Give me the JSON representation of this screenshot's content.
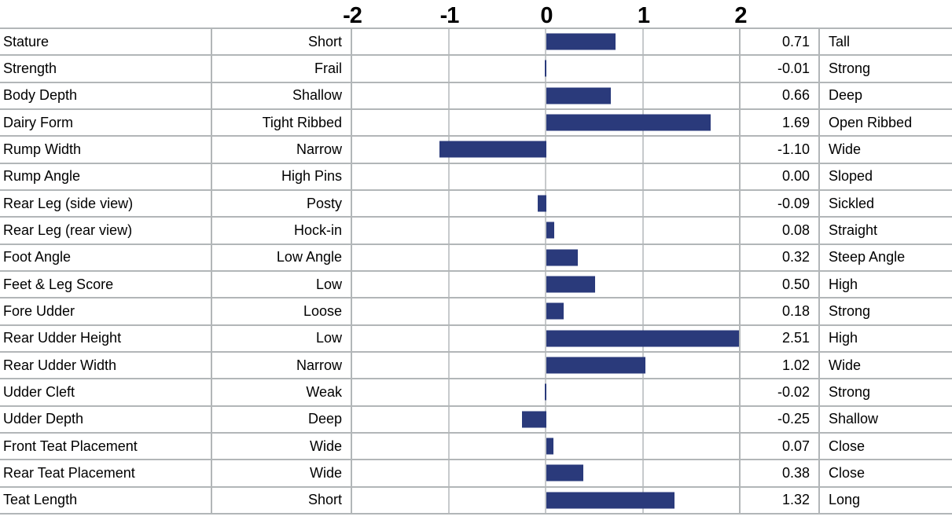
{
  "axis": {
    "ticks": [
      {
        "label": "-2",
        "value": -2
      },
      {
        "label": "-1",
        "value": -1
      },
      {
        "label": "0",
        "value": 0
      },
      {
        "label": "1",
        "value": 1
      },
      {
        "label": "2",
        "value": 2
      }
    ]
  },
  "rows": [
    {
      "trait": "Stature",
      "low": "Short",
      "value": "0.71",
      "high": "Tall"
    },
    {
      "trait": "Strength",
      "low": "Frail",
      "value": "-0.01",
      "high": "Strong"
    },
    {
      "trait": "Body Depth",
      "low": "Shallow",
      "value": "0.66",
      "high": "Deep"
    },
    {
      "trait": "Dairy Form",
      "low": "Tight Ribbed",
      "value": "1.69",
      "high": "Open Ribbed"
    },
    {
      "trait": "Rump Width",
      "low": "Narrow",
      "value": "-1.10",
      "high": "Wide"
    },
    {
      "trait": "Rump Angle",
      "low": "High Pins",
      "value": "0.00",
      "high": "Sloped"
    },
    {
      "trait": "Rear Leg (side view)",
      "low": "Posty",
      "value": "-0.09",
      "high": "Sickled"
    },
    {
      "trait": "Rear Leg (rear view)",
      "low": "Hock-in",
      "value": "0.08",
      "high": "Straight"
    },
    {
      "trait": "Foot Angle",
      "low": "Low Angle",
      "value": "0.32",
      "high": "Steep Angle"
    },
    {
      "trait": "Feet & Leg Score",
      "low": "Low",
      "value": "0.50",
      "high": "High"
    },
    {
      "trait": "Fore Udder",
      "low": "Loose",
      "value": "0.18",
      "high": "Strong"
    },
    {
      "trait": "Rear Udder Height",
      "low": "Low",
      "value": "2.51",
      "high": "High"
    },
    {
      "trait": "Rear Udder Width",
      "low": "Narrow",
      "value": "1.02",
      "high": "Wide"
    },
    {
      "trait": "Udder Cleft",
      "low": "Weak",
      "value": "-0.02",
      "high": "Strong"
    },
    {
      "trait": "Udder Depth",
      "low": "Deep",
      "value": "-0.25",
      "high": "Shallow"
    },
    {
      "trait": "Front Teat Placement",
      "low": "Wide",
      "value": "0.07",
      "high": "Close"
    },
    {
      "trait": "Rear Teat Placement",
      "low": "Wide",
      "value": "0.38",
      "high": "Close"
    },
    {
      "trait": "Teat Length",
      "low": "Short",
      "value": "1.32",
      "high": "Long"
    }
  ],
  "chart_data": {
    "type": "bar",
    "orientation": "horizontal",
    "title": "",
    "categories": [
      "Stature",
      "Strength",
      "Body Depth",
      "Dairy Form",
      "Rump Width",
      "Rump Angle",
      "Rear Leg (side view)",
      "Rear Leg (rear view)",
      "Foot Angle",
      "Feet & Leg Score",
      "Fore Udder",
      "Rear Udder Height",
      "Rear Udder Width",
      "Udder Cleft",
      "Udder Depth",
      "Front Teat Placement",
      "Rear Teat Placement",
      "Teat Length"
    ],
    "values": [
      0.71,
      -0.01,
      0.66,
      1.69,
      -1.1,
      0.0,
      -0.09,
      0.08,
      0.32,
      0.5,
      0.18,
      2.51,
      1.02,
      -0.02,
      -0.25,
      0.07,
      0.38,
      1.32
    ],
    "low_labels": [
      "Short",
      "Frail",
      "Shallow",
      "Tight Ribbed",
      "Narrow",
      "High Pins",
      "Posty",
      "Hock-in",
      "Low Angle",
      "Low",
      "Loose",
      "Low",
      "Narrow",
      "Weak",
      "Deep",
      "Wide",
      "Wide",
      "Short"
    ],
    "high_labels": [
      "Tall",
      "Strong",
      "Deep",
      "Open Ribbed",
      "Wide",
      "Sloped",
      "Sickled",
      "Straight",
      "Steep Angle",
      "High",
      "Strong",
      "High",
      "Wide",
      "Strong",
      "Shallow",
      "Close",
      "Close",
      "Long"
    ],
    "xlabel": "",
    "ylabel": "",
    "xlim": [
      -2,
      2
    ],
    "x_ticks": [
      -2,
      -1,
      0,
      1,
      2
    ],
    "grid": true,
    "bars_clipped_to_xlim": true,
    "bar_color": "#2a3a7b"
  }
}
